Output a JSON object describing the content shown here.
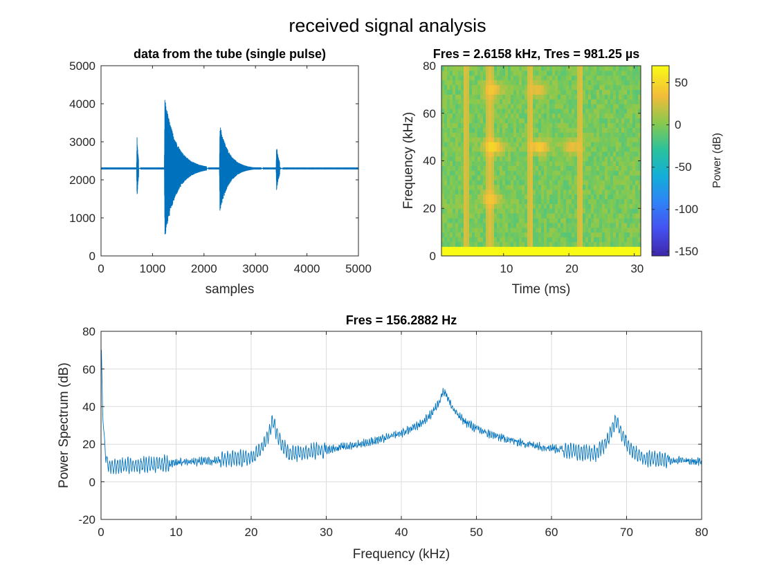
{
  "figure": {
    "suptitle": "received signal analysis"
  },
  "chart_data": [
    {
      "type": "line",
      "title": "data from the tube (single pulse)",
      "xlabel": "samples",
      "ylabel": "",
      "xlim": [
        0,
        5000
      ],
      "ylim": [
        0,
        5000
      ],
      "xticks": [
        "0",
        "1000",
        "2000",
        "3000",
        "4000",
        "5000"
      ],
      "yticks": [
        "0",
        "1000",
        "2000",
        "3000",
        "4000",
        "5000"
      ],
      "baseline": 2300,
      "color": "#0072bd",
      "bursts": [
        {
          "start": 690,
          "end": 730,
          "peak": 850,
          "decay": 25,
          "min_amp": 20
        },
        {
          "start": 1230,
          "end": 2050,
          "peak": 1850,
          "decay": 230,
          "min_amp": 20
        },
        {
          "start": 2300,
          "end": 3100,
          "peak": 1150,
          "decay": 180,
          "min_amp": 30
        },
        {
          "start": 3400,
          "end": 3470,
          "peak": 600,
          "decay": 50,
          "min_amp": 40
        }
      ]
    },
    {
      "type": "heatmap",
      "title": "Fres = 2.6158 kHz, Tres = 981.25 µs",
      "xlabel": "Time (ms)",
      "ylabel": "Frequency (kHz)",
      "xlim": [
        0.5,
        31
      ],
      "ylim": [
        0,
        80
      ],
      "xticks": [
        "10",
        "20",
        "30"
      ],
      "yticks": [
        "0",
        "20",
        "40",
        "60",
        "80"
      ],
      "colorbar": {
        "label": "Power (dB)",
        "clim": [
          -155,
          70
        ],
        "ticks": [
          "50",
          "0",
          "-50",
          "-100",
          "-150"
        ]
      },
      "hot_spots": [
        {
          "t": 8.5,
          "f": 46,
          "power": 55
        },
        {
          "t": 8.3,
          "f": 70,
          "power": 45
        },
        {
          "t": 8.1,
          "f": 24,
          "power": 45
        },
        {
          "t": 15.5,
          "f": 46,
          "power": 50
        },
        {
          "t": 15.3,
          "f": 70,
          "power": 38
        },
        {
          "t": 20.5,
          "f": 46,
          "power": 40
        }
      ],
      "vertical_bands_ms": [
        4.2,
        7.9,
        14.2,
        21.8
      ]
    },
    {
      "type": "line",
      "title": "Fres = 156.2882 Hz",
      "xlabel": "Frequency (kHz)",
      "ylabel": "Power Spectrum (dB)",
      "xlim": [
        0,
        80
      ],
      "ylim": [
        -20,
        80
      ],
      "xticks": [
        "0",
        "10",
        "20",
        "30",
        "40",
        "50",
        "60",
        "70",
        "80"
      ],
      "yticks": [
        "-20",
        "0",
        "20",
        "40",
        "60",
        "80"
      ],
      "grid": true,
      "color": "#0072bd",
      "peaks": [
        {
          "f": 0,
          "dB": 70
        },
        {
          "f": 22.9,
          "dB": 31
        },
        {
          "f": 45.7,
          "dB": 48
        },
        {
          "f": 68.6,
          "dB": 33
        }
      ]
    }
  ]
}
